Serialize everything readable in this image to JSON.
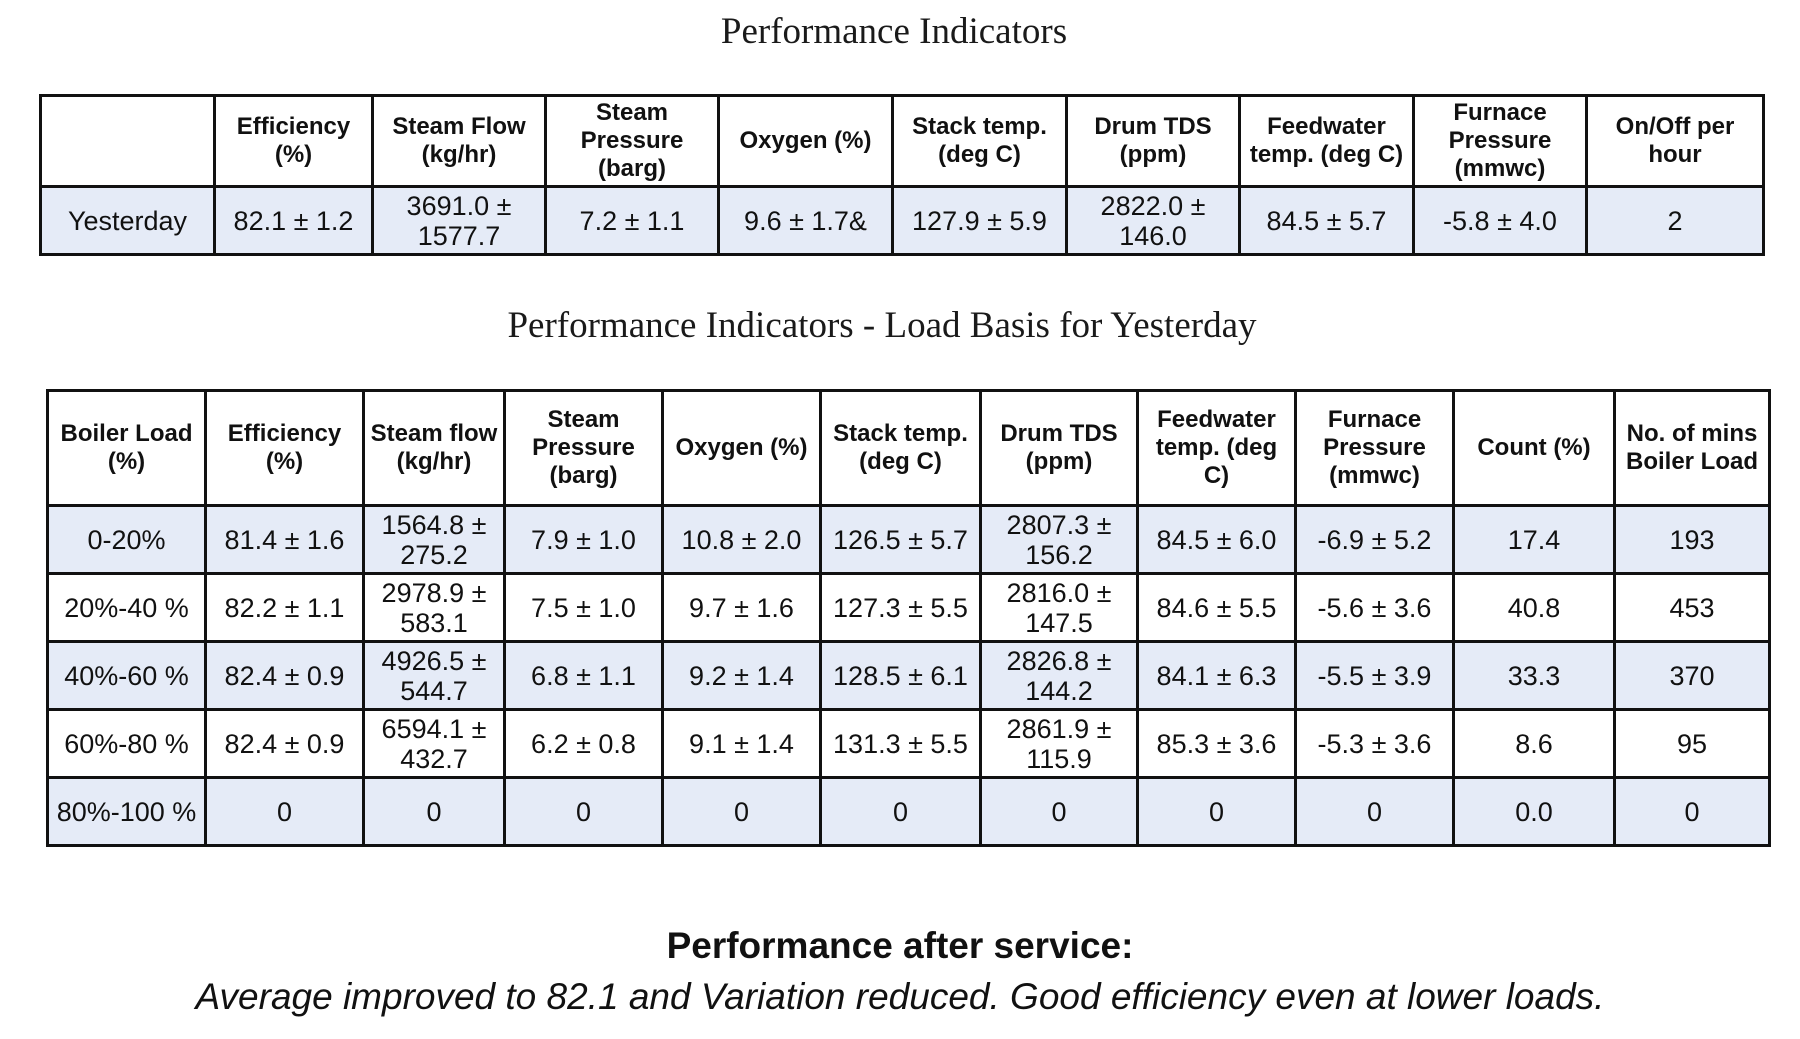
{
  "title1": "Performance Indicators",
  "table1": {
    "headers": [
      "",
      "Efficiency (%)",
      "Steam Flow (kg/hr)",
      "Steam Pressure (barg)",
      "Oxygen (%)",
      "Stack temp. (deg C)",
      "Drum TDS (ppm)",
      "Feedwater temp. (deg C)",
      "Furnace Pressure (mmwc)",
      "On/Off per hour"
    ],
    "row": [
      "Yesterday",
      "82.1 ± 1.2",
      "3691.0 ± 1577.7",
      "7.2 ± 1.1",
      "9.6 ± 1.7&",
      "127.9 ± 5.9",
      "2822.0 ± 146.0",
      "84.5 ± 5.7",
      "-5.8 ± 4.0",
      "2"
    ]
  },
  "title2": "Performance Indicators - Load Basis for Yesterday",
  "table2": {
    "headers": [
      "Boiler Load (%)",
      "Efficiency (%)",
      "Steam flow (kg/hr)",
      "Steam Pressure (barg)",
      "Oxygen (%)",
      "Stack temp. (deg C)",
      "Drum TDS (ppm)",
      "Feedwater temp. (deg C)",
      "Furnace Pressure (mmwc)",
      "Count (%)",
      "No. of mins Boiler Load"
    ],
    "rows": [
      [
        "0-20%",
        "81.4 ± 1.6",
        "1564.8 ± 275.2",
        "7.9 ± 1.0",
        "10.8 ± 2.0",
        "126.5 ± 5.7",
        "2807.3 ± 156.2",
        "84.5 ± 6.0",
        "-6.9 ± 5.2",
        "17.4",
        "193"
      ],
      [
        "20%-40 %",
        "82.2 ± 1.1",
        "2978.9 ± 583.1",
        "7.5 ± 1.0",
        "9.7 ± 1.6",
        "127.3 ± 5.5",
        "2816.0 ± 147.5",
        "84.6 ± 5.5",
        "-5.6 ± 3.6",
        "40.8",
        "453"
      ],
      [
        "40%-60 %",
        "82.4 ± 0.9",
        "4926.5 ± 544.7",
        "6.8 ± 1.1",
        "9.2 ± 1.4",
        "128.5 ± 6.1",
        "2826.8 ± 144.2",
        "84.1 ± 6.3",
        "-5.5 ± 3.9",
        "33.3",
        "370"
      ],
      [
        "60%-80 %",
        "82.4 ± 0.9",
        "6594.1 ± 432.7",
        "6.2 ± 0.8",
        "9.1 ± 1.4",
        "131.3 ± 5.5",
        "2861.9 ± 115.9",
        "85.3 ± 3.6",
        "-5.3 ± 3.6",
        "8.6",
        "95"
      ],
      [
        "80%-100 %",
        "0",
        "0",
        "0",
        "0",
        "0",
        "0",
        "0",
        "0",
        "0.0",
        "0"
      ]
    ]
  },
  "service": {
    "heading": "Performance after service:",
    "text": "Average improved to 82.1 and Variation reduced. Good efficiency even at lower loads."
  }
}
